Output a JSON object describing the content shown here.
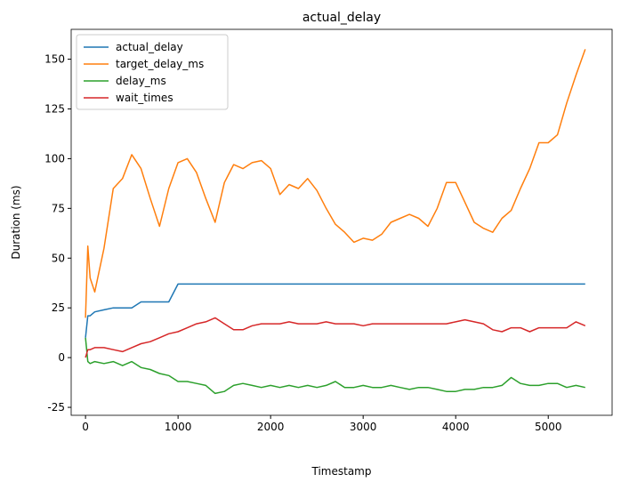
{
  "chart_data": {
    "type": "line",
    "title": "actual_delay",
    "x_label": "Timestamp",
    "y_label": "Duration (ms)",
    "x": [
      0,
      25,
      50,
      100,
      200,
      300,
      400,
      500,
      600,
      700,
      800,
      900,
      1000,
      1100,
      1200,
      1300,
      1400,
      1500,
      1600,
      1700,
      1800,
      1900,
      2000,
      2100,
      2200,
      2300,
      2400,
      2500,
      2600,
      2700,
      2800,
      2900,
      3000,
      3100,
      3200,
      3300,
      3400,
      3500,
      3600,
      3700,
      3800,
      3900,
      4000,
      4100,
      4200,
      4300,
      4400,
      4500,
      4600,
      4700,
      4800,
      4900,
      5000,
      5100,
      5200,
      5300,
      5400
    ],
    "series": [
      {
        "name": "actual_delay",
        "color": "#1f77b4",
        "values": [
          10,
          21,
          21,
          23,
          24,
          25,
          25,
          25,
          28,
          28,
          28,
          28,
          37,
          37,
          37,
          37,
          37,
          37,
          37,
          37,
          37,
          37,
          37,
          37,
          37,
          37,
          37,
          37,
          37,
          37,
          37,
          37,
          37,
          37,
          37,
          37,
          37,
          37,
          37,
          37,
          37,
          37,
          37,
          37,
          37,
          37,
          37,
          37,
          37,
          37,
          37,
          37,
          37,
          37,
          37,
          37,
          37
        ]
      },
      {
        "name": "target_delay_ms",
        "color": "#ff7f0e",
        "values": [
          20,
          56,
          40,
          33,
          55,
          85,
          90,
          102,
          95,
          80,
          66,
          85,
          98,
          100,
          93,
          80,
          68,
          88,
          97,
          95,
          98,
          99,
          95,
          82,
          87,
          85,
          90,
          84,
          75,
          67,
          63,
          58,
          60,
          59,
          62,
          68,
          70,
          72,
          70,
          66,
          75,
          88,
          88,
          78,
          68,
          65,
          63,
          70,
          74,
          85,
          95,
          108,
          108,
          112,
          128,
          142,
          155
        ]
      },
      {
        "name": "delay_ms",
        "color": "#2ca02c",
        "values": [
          10,
          -2,
          -3,
          -2,
          -3,
          -2,
          -4,
          -2,
          -5,
          -6,
          -8,
          -9,
          -12,
          -12,
          -13,
          -14,
          -18,
          -17,
          -14,
          -13,
          -14,
          -15,
          -14,
          -15,
          -14,
          -15,
          -14,
          -15,
          -14,
          -12,
          -15,
          -15,
          -14,
          -15,
          -15,
          -14,
          -15,
          -16,
          -15,
          -15,
          -16,
          -17,
          -17,
          -16,
          -16,
          -15,
          -15,
          -14,
          -10,
          -13,
          -14,
          -14,
          -13,
          -13,
          -15,
          -14,
          -15
        ]
      },
      {
        "name": "wait_times",
        "color": "#d62728",
        "values": [
          0,
          4,
          4,
          5,
          5,
          4,
          3,
          5,
          7,
          8,
          10,
          12,
          13,
          15,
          17,
          18,
          20,
          17,
          14,
          14,
          16,
          17,
          17,
          17,
          18,
          17,
          17,
          17,
          18,
          17,
          17,
          17,
          16,
          17,
          17,
          17,
          17,
          17,
          17,
          17,
          17,
          17,
          18,
          19,
          18,
          17,
          14,
          13,
          15,
          15,
          13,
          15,
          15,
          15,
          15,
          18,
          16
        ]
      }
    ],
    "xlim": [
      -155,
      5690
    ],
    "ylim": [
      -29,
      165
    ],
    "xticks": [
      0,
      1000,
      2000,
      3000,
      4000,
      5000
    ],
    "yticks": [
      -25,
      0,
      25,
      50,
      75,
      100,
      125,
      150
    ],
    "legend": "upper left"
  }
}
